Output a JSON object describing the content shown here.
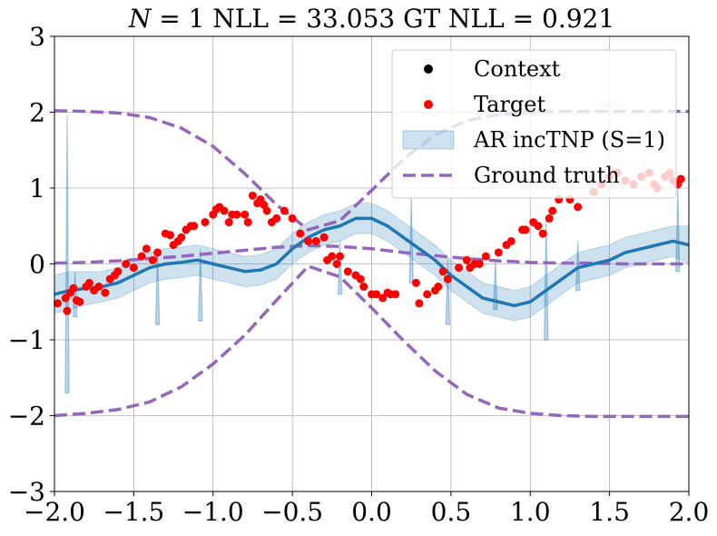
{
  "chart_data": {
    "type": "line",
    "title": "N = 1 NLL = 33.053 GT NLL = 0.921",
    "title_parts": {
      "var": "N",
      "rest": " = 1 NLL = 33.053 GT NLL = 0.921"
    },
    "xlabel": "",
    "ylabel": "",
    "xlim": [
      -2.0,
      2.0
    ],
    "ylim": [
      -3,
      3
    ],
    "xticks": [
      -2.0,
      -1.5,
      -1.0,
      -0.5,
      0.0,
      0.5,
      1.0,
      1.5,
      2.0
    ],
    "xtick_labels": [
      "−2.0",
      "−1.5",
      "−1.0",
      "−0.5",
      "0.0",
      "0.5",
      "1.0",
      "1.5",
      "2.0"
    ],
    "yticks": [
      -3,
      -2,
      -1,
      0,
      1,
      2,
      3
    ],
    "ytick_labels": [
      "−3",
      "−2",
      "−1",
      "0",
      "1",
      "2",
      "3"
    ],
    "grid": true,
    "legend_position": "top-right",
    "legend": [
      {
        "label": "Context",
        "kind": "marker",
        "color": "#000000"
      },
      {
        "label": "Target",
        "kind": "marker",
        "color": "#ff0000"
      },
      {
        "label": "AR incTNP (S=1)",
        "kind": "band",
        "color": "#1f77b4"
      },
      {
        "label": "Ground truth",
        "kind": "dashed",
        "color": "#9467bd"
      }
    ],
    "colors": {
      "context": "#000000",
      "target": "#ff0000",
      "model_mean": "#1f77b4",
      "model_band": "#1f77b4",
      "ground_truth": "#9467bd"
    },
    "model_mean": {
      "x": [
        -2.0,
        -1.9,
        -1.8,
        -1.7,
        -1.6,
        -1.5,
        -1.4,
        -1.3,
        -1.2,
        -1.1,
        -1.0,
        -0.9,
        -0.8,
        -0.7,
        -0.6,
        -0.5,
        -0.4,
        -0.3,
        -0.2,
        -0.1,
        0.0,
        0.1,
        0.2,
        0.3,
        0.4,
        0.5,
        0.6,
        0.7,
        0.8,
        0.9,
        1.0,
        1.1,
        1.2,
        1.3,
        1.4,
        1.5,
        1.6,
        1.7,
        1.8,
        1.9,
        2.0
      ],
      "y": [
        -0.4,
        -0.35,
        -0.32,
        -0.3,
        -0.25,
        -0.15,
        -0.05,
        0.0,
        0.02,
        0.05,
        0.0,
        -0.05,
        -0.1,
        -0.08,
        0.0,
        0.2,
        0.35,
        0.45,
        0.5,
        0.6,
        0.6,
        0.5,
        0.35,
        0.2,
        0.05,
        -0.15,
        -0.3,
        -0.45,
        -0.5,
        -0.55,
        -0.5,
        -0.35,
        -0.2,
        -0.05,
        0.0,
        0.05,
        0.15,
        0.2,
        0.25,
        0.3,
        0.25
      ]
    },
    "model_band_halfwidth": {
      "x": [
        -2.0,
        -1.9,
        -1.8,
        -1.7,
        -1.6,
        -1.5,
        -1.4,
        -1.3,
        -1.2,
        -1.1,
        -1.0,
        -0.9,
        -0.8,
        -0.7,
        -0.6,
        -0.5,
        -0.4,
        -0.3,
        -0.2,
        -0.1,
        0.0,
        0.1,
        0.2,
        0.3,
        0.4,
        0.5,
        0.6,
        0.7,
        0.8,
        0.9,
        1.0,
        1.1,
        1.2,
        1.3,
        1.4,
        1.5,
        1.6,
        1.7,
        1.8,
        1.9,
        2.0
      ],
      "y": [
        0.25,
        0.25,
        0.22,
        0.2,
        0.2,
        0.2,
        0.2,
        0.2,
        0.2,
        0.2,
        0.2,
        0.2,
        0.2,
        0.2,
        0.2,
        0.2,
        0.2,
        0.2,
        0.2,
        0.2,
        0.2,
        0.2,
        0.2,
        0.2,
        0.2,
        0.2,
        0.2,
        0.2,
        0.2,
        0.2,
        0.2,
        0.2,
        0.2,
        0.2,
        0.2,
        0.2,
        0.2,
        0.2,
        0.2,
        0.2,
        0.25
      ]
    },
    "model_spikes": [
      {
        "x": -1.92,
        "high": 1.95,
        "low": -1.7
      },
      {
        "x": -1.87,
        "high": -0.1,
        "low": -0.7
      },
      {
        "x": -1.35,
        "high": 0.2,
        "low": -0.8
      },
      {
        "x": -1.08,
        "high": 0.2,
        "low": -0.75
      },
      {
        "x": -0.2,
        "high": 0.3,
        "low": -0.4
      },
      {
        "x": 0.25,
        "high": 0.9,
        "low": -0.25
      },
      {
        "x": 0.48,
        "high": 0.05,
        "low": -0.8
      },
      {
        "x": 0.78,
        "high": 0.05,
        "low": -0.6
      },
      {
        "x": 1.1,
        "high": 0.6,
        "low": -1.0
      },
      {
        "x": 1.3,
        "high": 0.3,
        "low": -0.35
      },
      {
        "x": 1.93,
        "high": 1.0,
        "low": -0.1
      }
    ],
    "ground_truth_curves": [
      {
        "x": [
          -2.0,
          -1.8,
          -1.6,
          -1.4,
          -1.2,
          -1.0,
          -0.8,
          -0.6,
          -0.4,
          -0.2,
          0.0,
          0.2,
          0.4,
          0.6,
          0.8,
          1.0,
          1.2,
          1.4,
          1.6,
          1.8,
          2.0
        ],
        "y": [
          2.02,
          2.01,
          1.99,
          1.93,
          1.79,
          1.55,
          1.19,
          0.78,
          0.45,
          0.57,
          0.97,
          1.38,
          1.7,
          1.89,
          1.97,
          2.0,
          2.01,
          2.01,
          2.01,
          2.01,
          2.01
        ]
      },
      {
        "x": [
          -2.0,
          -1.8,
          -1.6,
          -1.4,
          -1.2,
          -1.0,
          -0.8,
          -0.6,
          -0.4,
          -0.2,
          0.0,
          0.2,
          0.4,
          0.6,
          0.8,
          1.0,
          1.2,
          1.4,
          1.6,
          1.8,
          2.0
        ],
        "y": [
          0.01,
          0.02,
          0.04,
          0.07,
          0.1,
          0.14,
          0.18,
          0.22,
          0.24,
          0.23,
          0.2,
          0.15,
          0.11,
          0.07,
          0.04,
          0.02,
          0.01,
          0.01,
          0.0,
          0.0,
          0.0
        ]
      },
      {
        "x": [
          -2.0,
          -1.8,
          -1.6,
          -1.4,
          -1.2,
          -1.0,
          -0.8,
          -0.6,
          -0.4,
          -0.2,
          0.0,
          0.2,
          0.4,
          0.6,
          0.8,
          1.0,
          1.2,
          1.4,
          1.6,
          1.8,
          2.0
        ],
        "y": [
          -2.0,
          -1.97,
          -1.92,
          -1.82,
          -1.62,
          -1.32,
          -0.94,
          -0.48,
          -0.03,
          -0.17,
          -0.58,
          -1.01,
          -1.41,
          -1.72,
          -1.9,
          -1.97,
          -2.0,
          -2.01,
          -2.01,
          -2.01,
          -2.01
        ]
      }
    ],
    "target_points": [
      [
        -1.98,
        -0.52
      ],
      [
        -1.93,
        -0.45
      ],
      [
        -1.92,
        -0.62
      ],
      [
        -1.9,
        -0.38
      ],
      [
        -1.88,
        -0.32
      ],
      [
        -1.86,
        -0.48
      ],
      [
        -1.84,
        -0.5
      ],
      [
        -1.8,
        -0.3
      ],
      [
        -1.78,
        -0.25
      ],
      [
        -1.75,
        -0.35
      ],
      [
        -1.72,
        -0.3
      ],
      [
        -1.68,
        -0.38
      ],
      [
        -1.65,
        -0.2
      ],
      [
        -1.62,
        -0.15
      ],
      [
        -1.6,
        -0.1
      ],
      [
        -1.55,
        0.0
      ],
      [
        -1.5,
        -0.05
      ],
      [
        -1.45,
        0.1
      ],
      [
        -1.42,
        0.2
      ],
      [
        -1.38,
        0.05
      ],
      [
        -1.35,
        0.15
      ],
      [
        -1.3,
        0.4
      ],
      [
        -1.27,
        0.38
      ],
      [
        -1.25,
        0.25
      ],
      [
        -1.22,
        0.3
      ],
      [
        -1.2,
        0.35
      ],
      [
        -1.17,
        0.45
      ],
      [
        -1.14,
        0.5
      ],
      [
        -1.12,
        0.5
      ],
      [
        -1.05,
        0.55
      ],
      [
        -1.0,
        0.65
      ],
      [
        -0.98,
        0.72
      ],
      [
        -0.96,
        0.75
      ],
      [
        -0.93,
        0.7
      ],
      [
        -0.9,
        0.55
      ],
      [
        -0.88,
        0.65
      ],
      [
        -0.85,
        0.65
      ],
      [
        -0.8,
        0.65
      ],
      [
        -0.78,
        0.55
      ],
      [
        -0.75,
        0.9
      ],
      [
        -0.72,
        0.8
      ],
      [
        -0.7,
        0.85
      ],
      [
        -0.68,
        0.78
      ],
      [
        -0.66,
        0.7
      ],
      [
        -0.63,
        0.55
      ],
      [
        -0.6,
        0.6
      ],
      [
        -0.55,
        0.7
      ],
      [
        -0.5,
        0.6
      ],
      [
        -0.45,
        0.4
      ],
      [
        -0.4,
        0.3
      ],
      [
        -0.35,
        0.3
      ],
      [
        -0.3,
        0.35
      ],
      [
        -0.28,
        0.05
      ],
      [
        -0.25,
        0.1
      ],
      [
        -0.22,
        0.0
      ],
      [
        -0.2,
        0.1
      ],
      [
        -0.15,
        -0.1
      ],
      [
        -0.1,
        -0.15
      ],
      [
        -0.07,
        -0.2
      ],
      [
        -0.05,
        -0.3
      ],
      [
        0.0,
        -0.4
      ],
      [
        0.03,
        -0.4
      ],
      [
        0.07,
        -0.45
      ],
      [
        0.1,
        -0.38
      ],
      [
        0.12,
        -0.4
      ],
      [
        0.15,
        -0.4
      ],
      [
        0.28,
        -0.25
      ],
      [
        0.3,
        -0.52
      ],
      [
        0.35,
        -0.4
      ],
      [
        0.4,
        -0.35
      ],
      [
        0.42,
        -0.3
      ],
      [
        0.45,
        -0.1
      ],
      [
        0.48,
        -0.2
      ],
      [
        0.55,
        -0.05
      ],
      [
        0.6,
        0.05
      ],
      [
        0.62,
        -0.05
      ],
      [
        0.65,
        0.0
      ],
      [
        0.68,
        0.0
      ],
      [
        0.72,
        0.1
      ],
      [
        0.8,
        0.15
      ],
      [
        0.85,
        0.25
      ],
      [
        0.88,
        0.3
      ],
      [
        0.95,
        0.45
      ],
      [
        0.97,
        0.45
      ],
      [
        1.02,
        0.55
      ],
      [
        1.05,
        0.5
      ],
      [
        1.08,
        0.4
      ],
      [
        1.12,
        0.6
      ],
      [
        1.14,
        0.7
      ],
      [
        1.18,
        0.85
      ],
      [
        1.25,
        0.85
      ],
      [
        1.3,
        0.75
      ],
      [
        1.4,
        0.95
      ],
      [
        1.45,
        1.05
      ],
      [
        1.5,
        1.15
      ],
      [
        1.55,
        1.2
      ],
      [
        1.6,
        1.1
      ],
      [
        1.65,
        1.05
      ],
      [
        1.7,
        1.15
      ],
      [
        1.75,
        1.2
      ],
      [
        1.78,
        1.05
      ],
      [
        1.8,
        1.0
      ],
      [
        1.85,
        1.15
      ],
      [
        1.88,
        1.2
      ],
      [
        1.9,
        1.1
      ],
      [
        1.93,
        1.05
      ],
      [
        1.95,
        1.12
      ]
    ]
  }
}
